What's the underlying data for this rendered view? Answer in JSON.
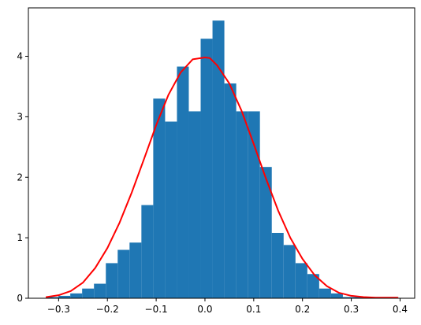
{
  "chart_data": {
    "type": "bar",
    "title": "",
    "xlabel": "",
    "ylabel": "",
    "xlim": [
      -0.362,
      0.43
    ],
    "ylim": [
      0,
      4.8
    ],
    "grid": false,
    "legend": "none",
    "xticks": [
      -0.3,
      -0.2,
      -0.1,
      0.0,
      0.1,
      0.2,
      0.3,
      0.4
    ],
    "xtick_labels": [
      "−0.3",
      "−0.2",
      "−0.1",
      "0.0",
      "0.1",
      "0.2",
      "0.3",
      "0.4"
    ],
    "yticks": [
      0,
      1,
      2,
      3,
      4
    ],
    "ytick_labels": [
      "0",
      "1",
      "2",
      "3",
      "4"
    ],
    "histogram": {
      "bin_edges": [
        -0.3247,
        -0.3004,
        -0.2761,
        -0.2518,
        -0.2275,
        -0.2032,
        -0.1789,
        -0.1546,
        -0.1303,
        -0.106,
        -0.0817,
        -0.0574,
        -0.0331,
        -0.0088,
        0.0155,
        0.0398,
        0.0641,
        0.0884,
        0.1127,
        0.137,
        0.1613,
        0.1856,
        0.2099,
        0.2342,
        0.2585,
        0.2828,
        0.3071,
        0.3314,
        0.3557,
        0.38,
        0.395
      ],
      "values": [
        0.02,
        0.04,
        0.08,
        0.16,
        0.24,
        0.58,
        0.8,
        0.92,
        1.54,
        3.3,
        2.92,
        3.83,
        3.09,
        4.29,
        4.59,
        3.55,
        3.09,
        3.09,
        2.17,
        1.08,
        0.88,
        0.58,
        0.4,
        0.16,
        0.08,
        0.02,
        0.02,
        0.02,
        0.02,
        0.02
      ],
      "color": "#1f77b4"
    },
    "series": [
      {
        "type": "line",
        "color": "#ff0000",
        "x": [
          -0.325,
          -0.3,
          -0.275,
          -0.25,
          -0.225,
          -0.2,
          -0.175,
          -0.15,
          -0.125,
          -0.1,
          -0.075,
          -0.05,
          -0.025,
          0.0,
          0.01,
          0.025,
          0.05,
          0.075,
          0.1,
          0.125,
          0.15,
          0.175,
          0.2,
          0.225,
          0.25,
          0.275,
          0.3,
          0.325,
          0.35,
          0.395
        ],
        "y": [
          0.02,
          0.05,
          0.12,
          0.26,
          0.5,
          0.83,
          1.25,
          1.75,
          2.3,
          2.86,
          3.36,
          3.73,
          3.95,
          3.98,
          3.97,
          3.85,
          3.55,
          3.1,
          2.55,
          1.98,
          1.45,
          1.0,
          0.65,
          0.38,
          0.2,
          0.09,
          0.04,
          0.02,
          0.01,
          0.01
        ]
      }
    ]
  }
}
